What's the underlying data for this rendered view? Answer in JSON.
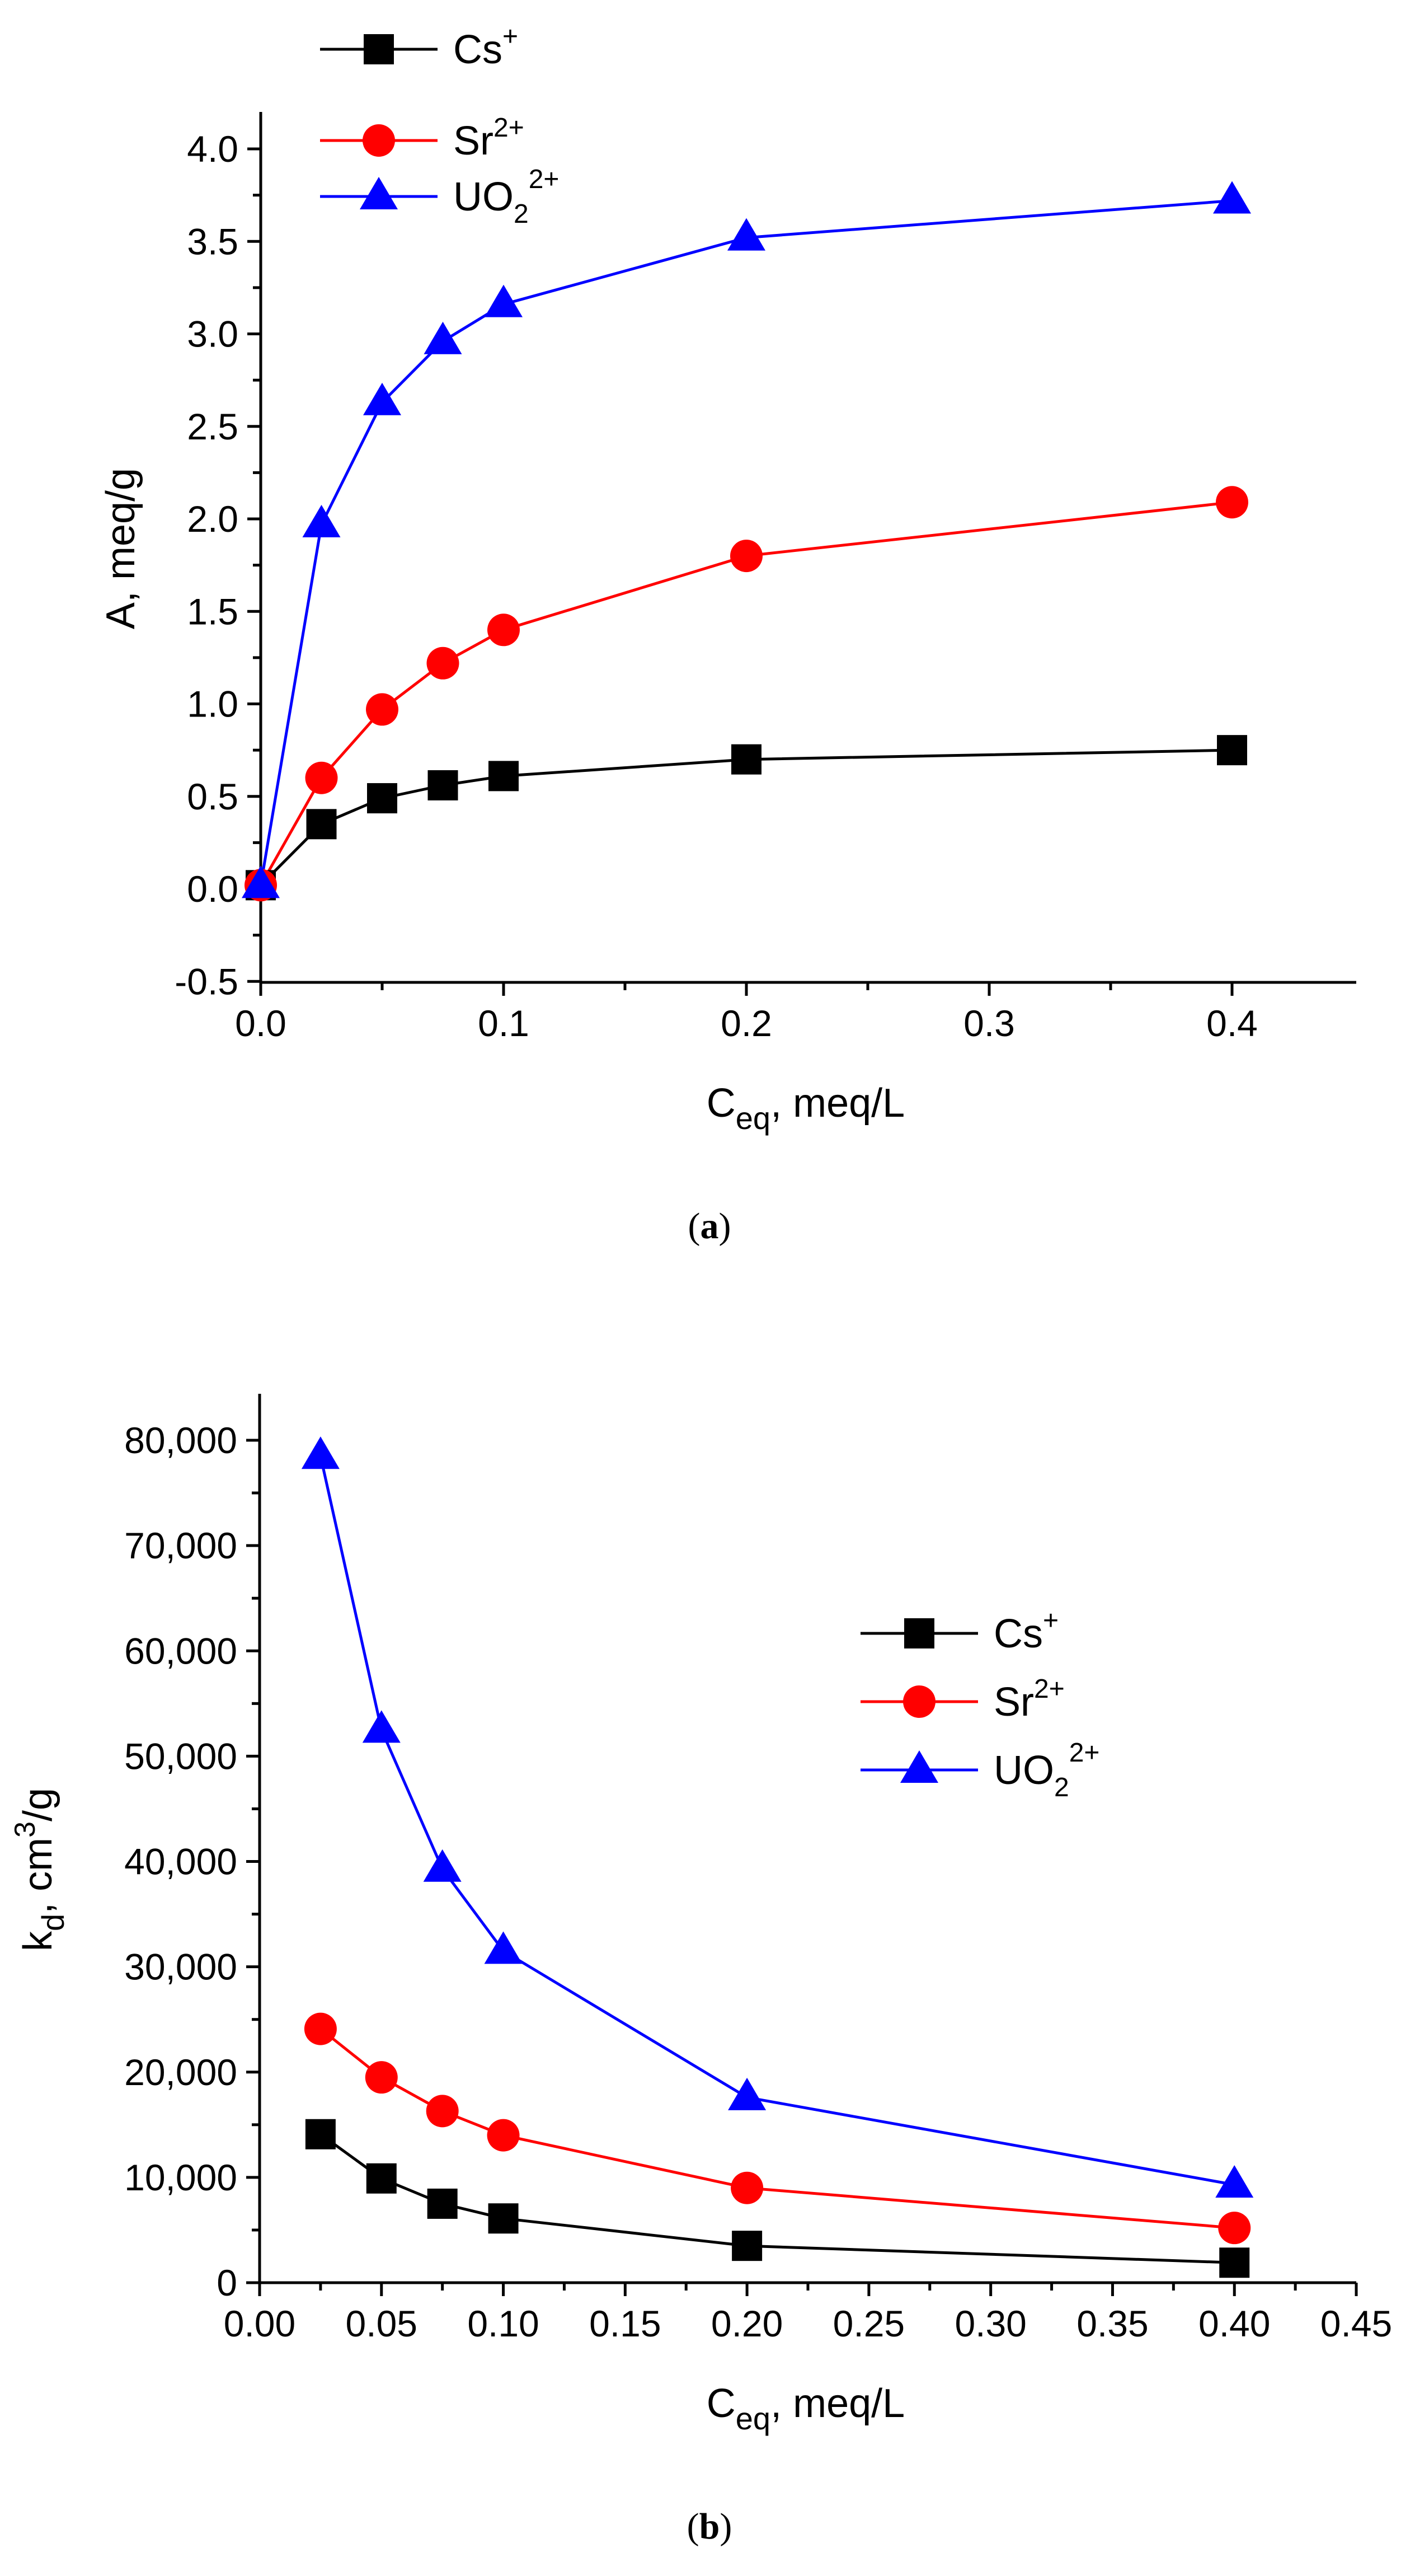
{
  "chart_data": [
    {
      "panel": "a",
      "type": "line",
      "xlabel_main": "C",
      "xlabel_sub": "eq",
      "xlabel_rest": ", meq/L",
      "ylabel": "A, meq/g",
      "xlim": [
        0,
        0.45
      ],
      "ylim": [
        -0.5,
        4.25
      ],
      "xticks": [
        0.0,
        0.1,
        0.2,
        0.3,
        0.4
      ],
      "xtick_labels": [
        "0.0",
        "0.1",
        "0.2",
        "0.3",
        "0.4"
      ],
      "yticks": [
        -0.5,
        0.0,
        0.5,
        1.0,
        1.5,
        2.0,
        2.5,
        3.0,
        3.5,
        4.0
      ],
      "ytick_labels": [
        "-0.5",
        "0.0",
        "0.5",
        "1.0",
        "1.5",
        "2.0",
        "2.5",
        "3.0",
        "3.5",
        "4.0"
      ],
      "legend_position": "top-left",
      "series": [
        {
          "key": "cs",
          "name": "Cs",
          "sup": "+",
          "sub": "",
          "color": "#000000",
          "marker": "square",
          "x": [
            0.0,
            0.025,
            0.05,
            0.075,
            0.1,
            0.2,
            0.4
          ],
          "y": [
            0.02,
            0.35,
            0.49,
            0.56,
            0.61,
            0.7,
            0.75
          ]
        },
        {
          "key": "sr",
          "name": "Sr",
          "sup": "2+",
          "sub": "",
          "color": "#ff0000",
          "marker": "circle",
          "x": [
            0.0,
            0.025,
            0.05,
            0.075,
            0.1,
            0.2,
            0.4
          ],
          "y": [
            0.02,
            0.6,
            0.97,
            1.22,
            1.4,
            1.8,
            2.09
          ]
        },
        {
          "key": "uo2",
          "name": "UO",
          "sup": "2+",
          "sub": "2",
          "color": "#0000ff",
          "marker": "triangle",
          "x": [
            0.0,
            0.025,
            0.05,
            0.075,
            0.1,
            0.2,
            0.4
          ],
          "y": [
            0.02,
            1.97,
            2.63,
            2.96,
            3.16,
            3.52,
            3.72
          ]
        }
      ]
    },
    {
      "panel": "b",
      "type": "line",
      "xlabel_main": "C",
      "xlabel_sub": "eq",
      "xlabel_rest": ", meq/L",
      "ylabel_main": "k",
      "ylabel_sub": "d",
      "ylabel_rest1": ", cm",
      "ylabel_sup": "3",
      "ylabel_rest2": "/g",
      "xlim": [
        0.0,
        0.45
      ],
      "ylim": [
        0,
        85000
      ],
      "xticks": [
        0.0,
        0.05,
        0.1,
        0.15,
        0.2,
        0.25,
        0.3,
        0.35,
        0.4,
        0.45
      ],
      "xtick_labels": [
        "0.00",
        "0.05",
        "0.10",
        "0.15",
        "0.20",
        "0.25",
        "0.30",
        "0.35",
        "0.40",
        "0.45"
      ],
      "yticks": [
        0,
        10000,
        20000,
        30000,
        40000,
        50000,
        60000,
        70000,
        80000
      ],
      "ytick_labels": [
        "0",
        "10,000",
        "20,000",
        "30,000",
        "40,000",
        "50,000",
        "60,000",
        "70,000",
        "80,000"
      ],
      "legend_position": "center-right",
      "series": [
        {
          "key": "cs",
          "name": "Cs",
          "sup": "+",
          "sub": "",
          "color": "#000000",
          "marker": "square",
          "x": [
            0.025,
            0.05,
            0.075,
            0.1,
            0.2,
            0.4
          ],
          "y": [
            14100,
            9900,
            7500,
            6100,
            3500,
            1900
          ]
        },
        {
          "key": "sr",
          "name": "Sr",
          "sup": "2+",
          "sub": "",
          "color": "#ff0000",
          "marker": "circle",
          "x": [
            0.025,
            0.05,
            0.075,
            0.1,
            0.2,
            0.4
          ],
          "y": [
            24100,
            19500,
            16300,
            14000,
            9000,
            5200
          ]
        },
        {
          "key": "uo2",
          "name": "UO",
          "sup": "2+",
          "sub": "2",
          "color": "#0000ff",
          "marker": "triangle",
          "x": [
            0.025,
            0.05,
            0.075,
            0.1,
            0.2,
            0.4
          ],
          "y": [
            78500,
            52500,
            39300,
            31500,
            17600,
            9300
          ]
        }
      ]
    }
  ],
  "captions": {
    "a_open": "(",
    "a_letter": "a",
    "a_close": ")",
    "b_open": "(",
    "b_letter": "b",
    "b_close": ")"
  }
}
